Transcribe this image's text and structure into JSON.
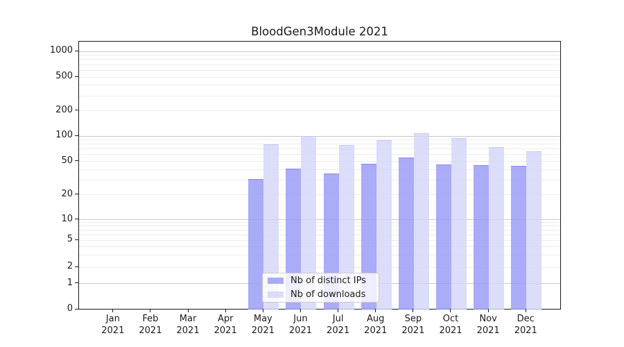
{
  "chart_data": {
    "type": "bar",
    "title": "BloodGen3Module 2021",
    "x_months": [
      "Jan",
      "Feb",
      "Mar",
      "Apr",
      "May",
      "Jun",
      "Jul",
      "Aug",
      "Sep",
      "Oct",
      "Nov",
      "Dec"
    ],
    "x_year": "2021",
    "series": [
      {
        "name": "Nb of distinct IPs",
        "fill": "rgba(151,154,245,0.82)",
        "edge": "rgba(128,132,240,0.85)",
        "values": [
          0,
          0,
          0,
          0,
          31,
          41,
          36,
          47,
          56,
          46,
          45,
          44
        ]
      },
      {
        "name": "Nb of downloads",
        "fill": "rgba(211,213,248,0.82)",
        "edge": "rgba(196,198,246,0.85)",
        "values": [
          0,
          0,
          0,
          0,
          80,
          100,
          79,
          90,
          108,
          95,
          74,
          66
        ]
      }
    ],
    "y_ticks": [
      0,
      1,
      2,
      5,
      10,
      20,
      50,
      100,
      200,
      500,
      1000
    ],
    "y_scale": "symlog",
    "ylim": [
      0,
      1300
    ],
    "grid": "horizontal, log minor + major",
    "legend_position": "lower center"
  },
  "colors": {
    "grid_minor": "#ececec",
    "grid_major": "#c9c9c9",
    "spine": "#1a1a1a",
    "text": "#1a1a1a",
    "legend_bg": "rgba(255,255,255,0.8)",
    "legend_border": "#cccccc"
  }
}
